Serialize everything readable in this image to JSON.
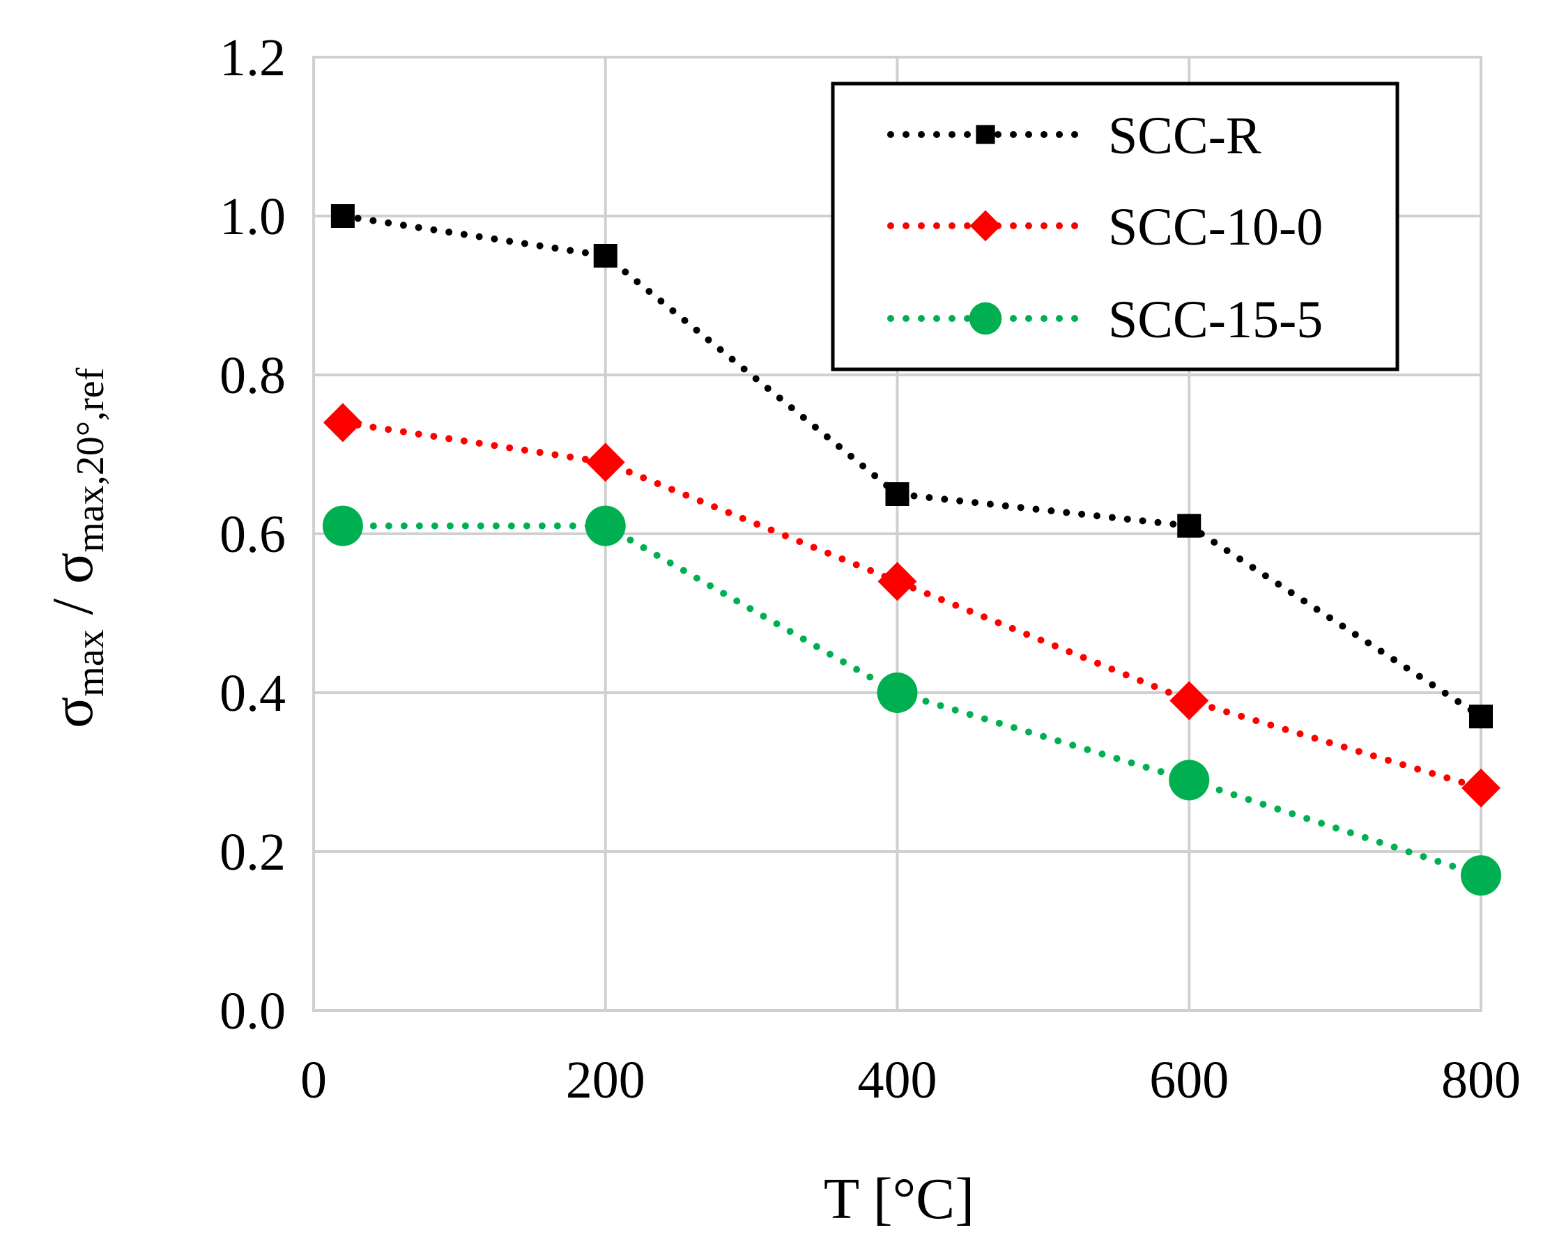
{
  "chart_data": {
    "type": "line",
    "title": "",
    "xlabel": "T [°C]",
    "ylabel": {
      "sigma": "σ",
      "num_sub": "max",
      "slash": " / ",
      "den_sub": "max,20°,ref"
    },
    "xlim": [
      0,
      800
    ],
    "ylim": [
      0,
      1.2
    ],
    "xticks": [
      "0",
      "200",
      "400",
      "600",
      "800"
    ],
    "yticks": [
      "0.0",
      "0.2",
      "0.4",
      "0.6",
      "0.8",
      "1.0",
      "1.2"
    ],
    "grid": true,
    "legend_position": "top-right",
    "x": [
      20,
      200,
      400,
      600,
      800
    ],
    "series": [
      {
        "name": "SCC-R",
        "marker": "square",
        "color": "#000000",
        "values": [
          1.0,
          0.95,
          0.65,
          0.61,
          0.37
        ]
      },
      {
        "name": "SCC-10-0",
        "marker": "diamond",
        "color": "#ff0000",
        "values": [
          0.74,
          0.69,
          0.54,
          0.39,
          0.28
        ]
      },
      {
        "name": "SCC-15-5",
        "marker": "circle",
        "color": "#00b050",
        "values": [
          0.61,
          0.61,
          0.4,
          0.29,
          0.17
        ]
      }
    ]
  }
}
